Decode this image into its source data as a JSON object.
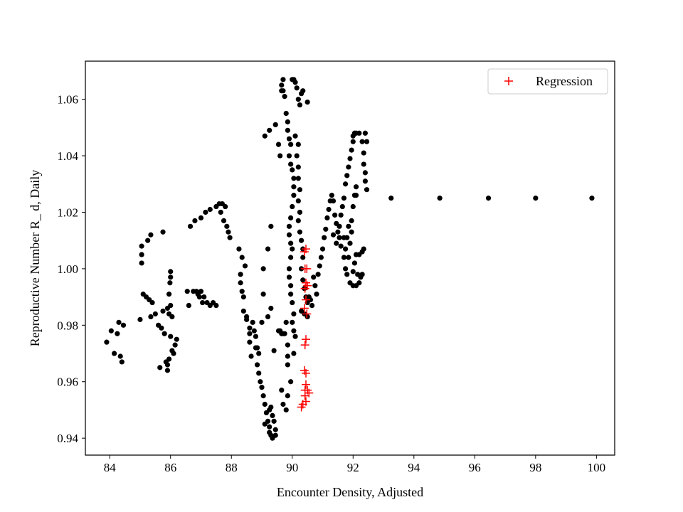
{
  "chart_data": {
    "type": "scatter",
    "title": "",
    "xlabel": "Encounter Density, Adjusted",
    "ylabel": "Reproductive Number R_ d, Daily",
    "xlim": [
      83.2,
      100.6
    ],
    "ylim": [
      0.934,
      1.0735
    ],
    "xticks": [
      "84",
      "86",
      "88",
      "90",
      "92",
      "94",
      "96",
      "98",
      "100"
    ],
    "yticks": [
      "0.94",
      "0.96",
      "0.98",
      "1.00",
      "1.02",
      "1.04",
      "1.06"
    ],
    "grid": false,
    "legend_position": "top-right",
    "colors": {
      "observed": "#000000",
      "regression": "#ff0000",
      "axes": "#000000"
    },
    "series": [
      {
        "marker": "dot",
        "color": "#000000",
        "points": [
          [
            83.9,
            0.974
          ],
          [
            84.05,
            0.978
          ],
          [
            84.15,
            0.97
          ],
          [
            84.25,
            0.977
          ],
          [
            84.3,
            0.981
          ],
          [
            84.35,
            0.969
          ],
          [
            84.4,
            0.967
          ],
          [
            84.45,
            0.98
          ],
          [
            85.0,
            0.982
          ],
          [
            85.05,
            1.002
          ],
          [
            85.05,
            1.005
          ],
          [
            85.05,
            1.008
          ],
          [
            85.1,
            0.991
          ],
          [
            85.2,
            0.99
          ],
          [
            85.25,
            1.01
          ],
          [
            85.3,
            0.989
          ],
          [
            85.35,
            1.012
          ],
          [
            85.35,
            0.983
          ],
          [
            85.4,
            0.988
          ],
          [
            85.5,
            0.984
          ],
          [
            85.6,
            0.98
          ],
          [
            85.65,
            0.965
          ],
          [
            85.7,
            0.979
          ],
          [
            85.75,
            1.013
          ],
          [
            85.75,
            0.985
          ],
          [
            85.8,
            0.977
          ],
          [
            85.85,
            0.967
          ],
          [
            85.9,
            0.966
          ],
          [
            85.9,
            0.964
          ],
          [
            85.95,
            0.968
          ],
          [
            85.95,
            0.984
          ],
          [
            85.9,
            0.986
          ],
          [
            86.0,
            0.987
          ],
          [
            85.95,
            0.991
          ],
          [
            85.98,
            0.995
          ],
          [
            86.0,
            0.997
          ],
          [
            86.0,
            0.999
          ],
          [
            86.05,
            0.983
          ],
          [
            86.0,
            0.976
          ],
          [
            86.05,
            0.971
          ],
          [
            86.1,
            0.97
          ],
          [
            86.15,
            0.973
          ],
          [
            86.2,
            0.975
          ],
          [
            86.55,
            0.992
          ],
          [
            86.6,
            0.987
          ],
          [
            86.65,
            1.015
          ],
          [
            86.75,
            0.992
          ],
          [
            86.8,
            1.017
          ],
          [
            86.85,
            0.992
          ],
          [
            86.9,
            0.991
          ],
          [
            86.95,
            0.99
          ],
          [
            87.0,
            0.992
          ],
          [
            87.0,
            1.018
          ],
          [
            87.05,
            0.988
          ],
          [
            87.1,
            0.99
          ],
          [
            87.15,
            1.02
          ],
          [
            87.2,
            0.988
          ],
          [
            87.3,
            0.987
          ],
          [
            87.3,
            1.021
          ],
          [
            87.4,
            0.988
          ],
          [
            87.5,
            0.987
          ],
          [
            87.5,
            1.022
          ],
          [
            87.6,
            1.023
          ],
          [
            87.65,
            1.02
          ],
          [
            87.7,
            1.023
          ],
          [
            87.75,
            1.017
          ],
          [
            87.8,
            1.022
          ],
          [
            87.85,
            1.015
          ],
          [
            87.9,
            1.013
          ],
          [
            87.95,
            1.011
          ],
          [
            88.25,
            1.007
          ],
          [
            88.3,
            0.998
          ],
          [
            88.3,
            0.995
          ],
          [
            88.35,
            0.992
          ],
          [
            88.35,
            1.004
          ],
          [
            88.4,
            0.99
          ],
          [
            88.4,
            0.985
          ],
          [
            88.45,
            1.001
          ],
          [
            88.5,
            0.983
          ],
          [
            88.5,
            0.982
          ],
          [
            88.6,
            0.979
          ],
          [
            88.6,
            0.974
          ],
          [
            88.65,
            0.969
          ],
          [
            88.6,
            0.977
          ],
          [
            88.7,
            0.981
          ],
          [
            88.75,
            0.978
          ],
          [
            88.8,
            0.976
          ],
          [
            88.85,
            0.972
          ],
          [
            88.9,
            0.97
          ],
          [
            88.8,
            0.972
          ],
          [
            88.85,
            0.966
          ],
          [
            88.9,
            0.963
          ],
          [
            88.95,
            0.96
          ],
          [
            89.0,
            0.958
          ],
          [
            89.05,
            0.955
          ],
          [
            89.1,
            0.952
          ],
          [
            89.15,
            0.949
          ],
          [
            89.2,
            0.946
          ],
          [
            89.25,
            0.944
          ],
          [
            89.25,
            0.942
          ],
          [
            89.3,
            0.941
          ],
          [
            89.35,
            0.94
          ],
          [
            89.45,
            0.941
          ],
          [
            89.45,
            0.943
          ],
          [
            89.4,
            0.946
          ],
          [
            89.35,
            0.948
          ],
          [
            89.3,
            0.951
          ],
          [
            89.25,
            0.95
          ],
          [
            89.1,
            0.945
          ],
          [
            89.0,
            0.981
          ],
          [
            89.05,
            1.0
          ],
          [
            89.05,
            0.991
          ],
          [
            89.2,
            0.983
          ],
          [
            89.2,
            1.007
          ],
          [
            89.3,
            0.986
          ],
          [
            89.3,
            1.015
          ],
          [
            89.25,
            1.049
          ],
          [
            89.1,
            1.047
          ],
          [
            89.4,
            0.971
          ],
          [
            89.55,
            0.978
          ],
          [
            89.6,
            0.978
          ],
          [
            89.65,
            0.977
          ],
          [
            89.7,
            0.977
          ],
          [
            89.75,
            0.977
          ],
          [
            89.8,
            0.981
          ],
          [
            89.85,
            0.973
          ],
          [
            89.85,
            0.969
          ],
          [
            89.85,
            0.966
          ],
          [
            89.45,
            1.051
          ],
          [
            89.55,
            1.044
          ],
          [
            89.6,
            1.04
          ],
          [
            89.65,
            1.063
          ],
          [
            89.65,
            1.065
          ],
          [
            89.7,
            1.067
          ],
          [
            89.7,
            1.063
          ],
          [
            89.75,
            1.061
          ],
          [
            89.8,
            1.055
          ],
          [
            89.85,
            1.052
          ],
          [
            89.85,
            1.049
          ],
          [
            89.9,
            1.046
          ],
          [
            89.95,
            1.044
          ],
          [
            89.9,
            1.04
          ],
          [
            89.95,
            1.037
          ],
          [
            90.0,
            1.035
          ],
          [
            90.05,
            1.032
          ],
          [
            90.05,
            1.029
          ],
          [
            90.05,
            1.026
          ],
          [
            90.0,
            1.022
          ],
          [
            89.95,
            1.018
          ],
          [
            89.9,
            1.015
          ],
          [
            89.9,
            1.012
          ],
          [
            89.95,
            1.009
          ],
          [
            90.0,
            1.007
          ],
          [
            89.95,
            1.004
          ],
          [
            89.9,
            1.0
          ],
          [
            89.9,
            0.997
          ],
          [
            89.95,
            0.994
          ],
          [
            89.95,
            0.991
          ],
          [
            90.0,
            0.988
          ],
          [
            90.05,
            0.984
          ],
          [
            90.0,
            0.981
          ],
          [
            90.05,
            0.978
          ],
          [
            90.1,
            0.976
          ],
          [
            89.95,
            0.96
          ],
          [
            90.05,
            0.97
          ],
          [
            89.65,
            0.957
          ],
          [
            89.7,
            0.952
          ],
          [
            89.8,
            0.95
          ],
          [
            89.85,
            0.955
          ],
          [
            90.0,
            1.067
          ],
          [
            90.05,
            1.067
          ],
          [
            90.1,
            1.066
          ],
          [
            90.15,
            1.064
          ],
          [
            90.2,
            1.06
          ],
          [
            90.25,
            1.058
          ],
          [
            90.3,
            1.062
          ],
          [
            90.35,
            1.063
          ],
          [
            90.5,
            1.059
          ],
          [
            90.1,
            1.047
          ],
          [
            90.2,
            1.044
          ],
          [
            90.15,
            1.04
          ],
          [
            90.2,
            1.036
          ],
          [
            90.2,
            1.032
          ],
          [
            90.25,
            1.028
          ],
          [
            90.2,
            1.024
          ],
          [
            90.25,
            1.02
          ],
          [
            90.2,
            1.017
          ],
          [
            90.25,
            1.013
          ],
          [
            90.3,
            1.01
          ],
          [
            90.35,
            1.007
          ],
          [
            90.35,
            1.004
          ],
          [
            90.3,
            1.0
          ],
          [
            90.35,
            0.996
          ],
          [
            90.4,
            0.993
          ],
          [
            90.45,
            0.99
          ],
          [
            90.5,
            0.988
          ],
          [
            90.55,
            0.99
          ],
          [
            90.6,
            0.989
          ],
          [
            90.65,
            0.987
          ],
          [
            90.75,
            0.994
          ],
          [
            90.8,
            0.991
          ],
          [
            90.7,
            0.997
          ],
          [
            90.3,
            0.985
          ],
          [
            90.4,
            0.984
          ],
          [
            90.5,
            0.983
          ],
          [
            90.85,
            0.998
          ],
          [
            90.9,
            1.001
          ],
          [
            90.95,
            1.004
          ],
          [
            91.0,
            1.007
          ],
          [
            91.05,
            1.011
          ],
          [
            91.1,
            1.014
          ],
          [
            91.15,
            1.018
          ],
          [
            91.2,
            1.021
          ],
          [
            91.25,
            1.024
          ],
          [
            91.3,
            1.026
          ],
          [
            91.35,
            1.024
          ],
          [
            91.4,
            1.019
          ],
          [
            91.45,
            1.016
          ],
          [
            91.5,
            1.013
          ],
          [
            91.55,
            1.011
          ],
          [
            91.6,
            1.008
          ],
          [
            91.35,
            1.012
          ],
          [
            91.45,
            1.009
          ],
          [
            91.55,
            1.015
          ],
          [
            91.6,
            1.019
          ],
          [
            91.65,
            1.022
          ],
          [
            91.7,
            1.025
          ],
          [
            91.75,
            1.03
          ],
          [
            91.8,
            1.033
          ],
          [
            91.85,
            1.036
          ],
          [
            91.9,
            1.039
          ],
          [
            91.95,
            1.042
          ],
          [
            92.0,
            1.045
          ],
          [
            92.0,
            1.047
          ],
          [
            92.05,
            1.048
          ],
          [
            91.7,
            1.011
          ],
          [
            91.75,
            1.007
          ],
          [
            91.7,
            1.004
          ],
          [
            91.75,
            1.0
          ],
          [
            91.8,
            0.998
          ],
          [
            91.85,
            1.004
          ],
          [
            91.9,
            1.009
          ],
          [
            91.95,
            1.013
          ],
          [
            91.95,
            1.017
          ],
          [
            92.0,
            1.022
          ],
          [
            92.05,
            1.026
          ],
          [
            92.1,
            1.029
          ],
          [
            92.1,
            1.026
          ],
          [
            91.8,
            1.011
          ],
          [
            91.85,
            1.015
          ],
          [
            91.9,
            0.995
          ],
          [
            92.0,
            0.994
          ],
          [
            92.1,
            0.994
          ],
          [
            92.2,
            0.995
          ],
          [
            92.15,
            0.998
          ],
          [
            92.25,
            0.997
          ],
          [
            92.3,
            0.998
          ],
          [
            92.0,
            0.999
          ],
          [
            92.05,
            1.002
          ],
          [
            92.1,
            1.005
          ],
          [
            92.2,
            1.005
          ],
          [
            92.3,
            1.006
          ],
          [
            92.35,
            1.007
          ],
          [
            92.1,
            1.048
          ],
          [
            92.2,
            1.048
          ],
          [
            92.3,
            1.045
          ],
          [
            92.35,
            1.041
          ],
          [
            92.35,
            1.037
          ],
          [
            92.4,
            1.034
          ],
          [
            92.4,
            1.031
          ],
          [
            92.45,
            1.028
          ],
          [
            92.45,
            1.045
          ],
          [
            92.4,
            1.048
          ],
          [
            93.25,
            1.025
          ],
          [
            94.85,
            1.025
          ],
          [
            96.45,
            1.025
          ],
          [
            98.0,
            1.025
          ],
          [
            99.85,
            1.025
          ]
        ]
      },
      {
        "name": "Regression",
        "marker": "plus",
        "color": "#ff0000",
        "points": [
          [
            90.45,
            1.007
          ],
          [
            90.4,
            1.006
          ],
          [
            90.42,
            1.0
          ],
          [
            90.48,
            1.0
          ],
          [
            90.45,
            0.995
          ],
          [
            90.42,
            0.993
          ],
          [
            90.5,
            0.994
          ],
          [
            90.45,
            0.989
          ],
          [
            90.4,
            0.986
          ],
          [
            90.48,
            0.984
          ],
          [
            90.45,
            0.975
          ],
          [
            90.42,
            0.973
          ],
          [
            90.4,
            0.964
          ],
          [
            90.45,
            0.963
          ],
          [
            90.45,
            0.959
          ],
          [
            90.42,
            0.957
          ],
          [
            90.5,
            0.957
          ],
          [
            90.55,
            0.956
          ],
          [
            90.42,
            0.955
          ],
          [
            90.45,
            0.953
          ],
          [
            90.35,
            0.952
          ],
          [
            90.3,
            0.951
          ]
        ]
      }
    ]
  }
}
